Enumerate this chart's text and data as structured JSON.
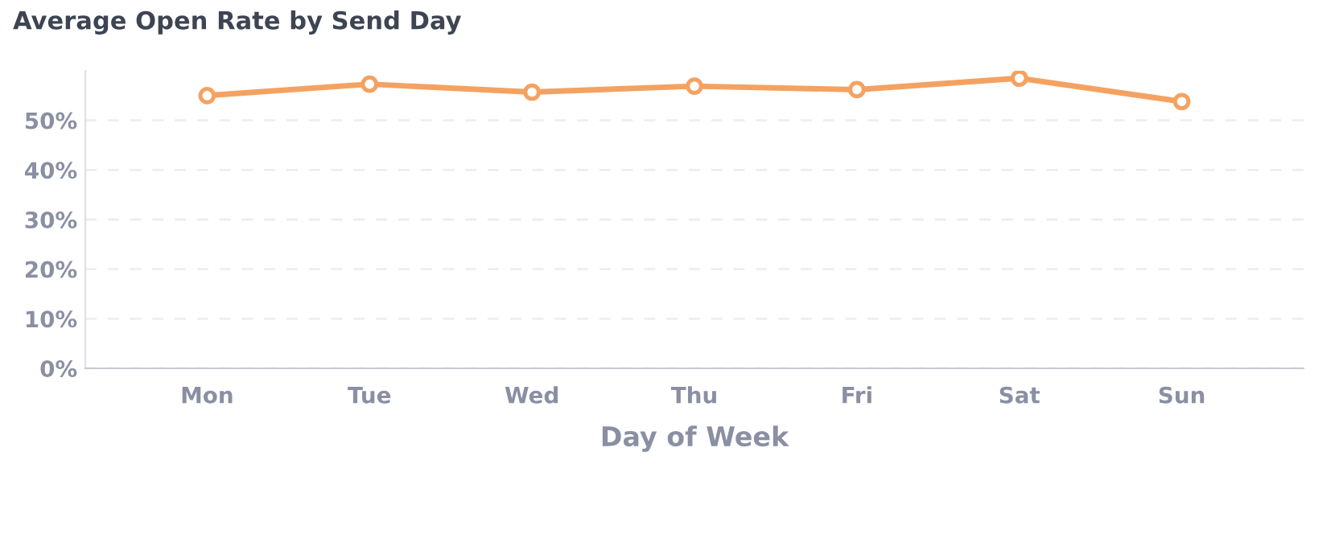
{
  "chart_data": {
    "type": "line",
    "title": "Average Open Rate by Send Day",
    "xlabel": "Day of Week",
    "categories": [
      "Mon",
      "Tue",
      "Wed",
      "Thu",
      "Fri",
      "Sat",
      "Sun"
    ],
    "series": [
      {
        "color": "#f4a261",
        "values": [
          55.0,
          57.3,
          55.7,
          56.9,
          56.2,
          58.5,
          53.8
        ]
      }
    ],
    "ylim": [
      0,
      60
    ],
    "yticks": [
      {
        "value": 0,
        "label": "0%"
      },
      {
        "value": 10,
        "label": "10%"
      },
      {
        "value": 20,
        "label": "20%"
      },
      {
        "value": 30,
        "label": "30%"
      },
      {
        "value": 40,
        "label": "40%"
      },
      {
        "value": 50,
        "label": "50%"
      }
    ],
    "grid": "y",
    "marker": "circle",
    "line_style": "solid"
  }
}
